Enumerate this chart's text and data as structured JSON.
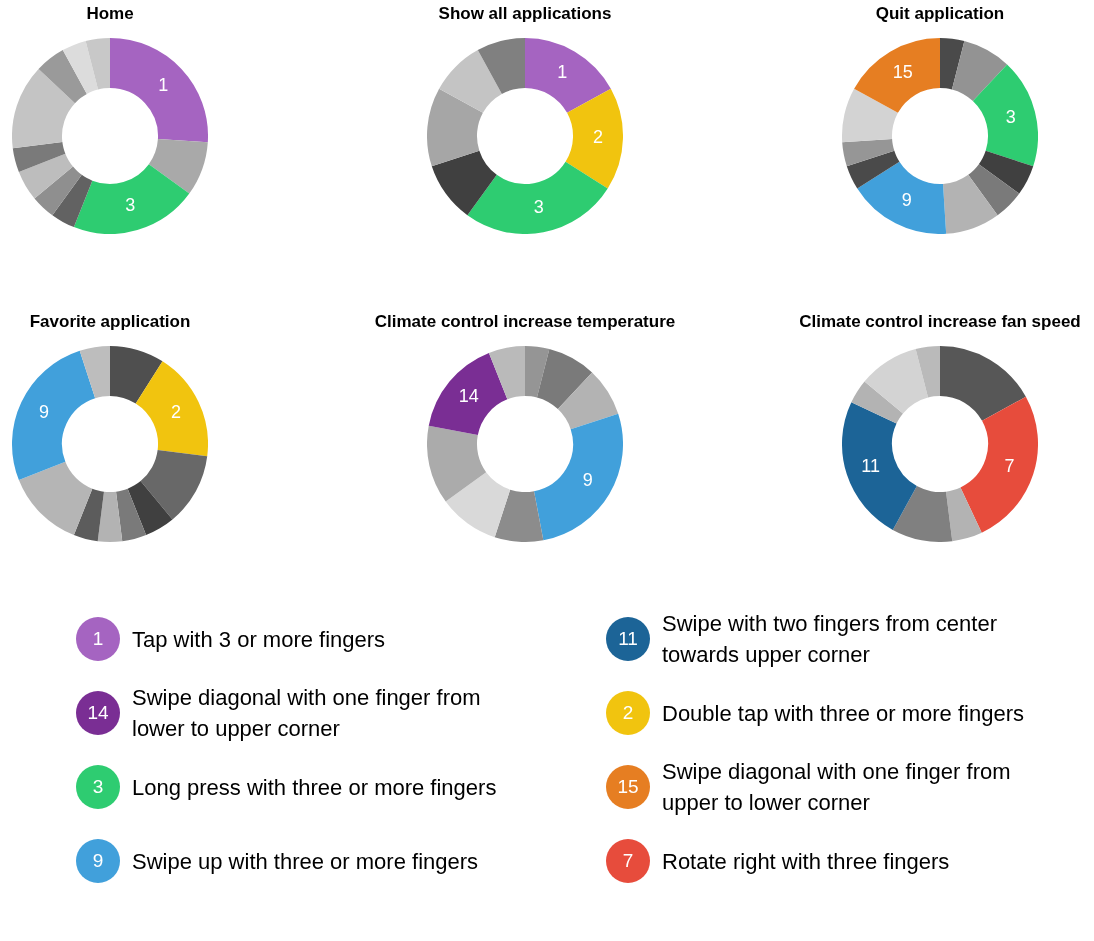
{
  "chart_data": [
    {
      "type": "donut",
      "title": "Home",
      "categories": [
        "1",
        null,
        "3",
        null,
        null,
        null,
        null,
        null,
        null,
        null,
        null
      ],
      "values": [
        26,
        9,
        21,
        4,
        4,
        5,
        4,
        14,
        5,
        4,
        4
      ],
      "colors": [
        "#a564c1",
        "#a9a9a9",
        "#2ecc71",
        "#626262",
        "#8f8f8f",
        "#bdbdbd",
        "#7a7a7a",
        "#c4c4c4",
        "#9a9a9a",
        "#dcdcdc",
        "#c8c8c8"
      ]
    },
    {
      "type": "donut",
      "title": "Show all applications",
      "categories": [
        "1",
        "2",
        "3",
        null,
        null,
        null,
        null
      ],
      "values": [
        17,
        17,
        26,
        10,
        13,
        9,
        8
      ],
      "colors": [
        "#a564c1",
        "#f1c40f",
        "#2ecc71",
        "#404040",
        "#a6a6a6",
        "#c4c4c4",
        "#808080"
      ]
    },
    {
      "type": "donut",
      "title": "Quit application",
      "categories": [
        null,
        null,
        "3",
        null,
        null,
        null,
        "9",
        null,
        null,
        null,
        "15"
      ],
      "values": [
        4,
        8,
        18,
        5,
        5,
        9,
        17,
        4,
        4,
        9,
        17
      ],
      "colors": [
        "#4a4a4a",
        "#939393",
        "#2ecc71",
        "#404040",
        "#7a7a7a",
        "#b3b3b3",
        "#41a0db",
        "#4a4a4a",
        "#969696",
        "#d3d3d3",
        "#e67e22"
      ]
    },
    {
      "type": "donut",
      "title": "Favorite application",
      "categories": [
        null,
        "2",
        null,
        null,
        null,
        null,
        null,
        null,
        "9",
        null
      ],
      "values": [
        9,
        18,
        12,
        5,
        4,
        4,
        4,
        13,
        26,
        5
      ],
      "colors": [
        "#4f4f4f",
        "#f1c40f",
        "#686868",
        "#404040",
        "#7a7a7a",
        "#b3b3b3",
        "#5c5c5c",
        "#b5b5b5",
        "#41a0db",
        "#bdbdbd"
      ]
    },
    {
      "type": "donut",
      "title": "Climate control increase temperature",
      "categories": [
        null,
        null,
        null,
        "9",
        null,
        null,
        null,
        "14",
        null
      ],
      "values": [
        4,
        8,
        8,
        27,
        8,
        10,
        13,
        16,
        6
      ],
      "colors": [
        "#959595",
        "#7a7a7a",
        "#b3b3b3",
        "#41a0db",
        "#8c8c8c",
        "#d9d9d9",
        "#ababab",
        "#7a2e94",
        "#bababa"
      ]
    },
    {
      "type": "donut",
      "title": "Climate control increase fan speed",
      "categories": [
        null,
        "7",
        null,
        null,
        "11",
        null,
        null,
        null
      ],
      "values": [
        17,
        26,
        5,
        10,
        24,
        4,
        10,
        4
      ],
      "colors": [
        "#575757",
        "#e74c3c",
        "#b3b3b3",
        "#808080",
        "#1c6497",
        "#b3b3b3",
        "#d3d3d3",
        "#bababa"
      ]
    },
    {
      "type": "other",
      "categories": [
        "1",
        "11",
        "14",
        "2",
        "3",
        "15",
        "9",
        "7"
      ],
      "colors": [
        "#a564c1",
        "#1c6497",
        "#7a2e94",
        "#f1c40f",
        "#2ecc71",
        "#e67e22",
        "#41a0db",
        "#e74c3c"
      ],
      "annotations": [
        "Tap with 3 or more fingers",
        "Swipe with two fingers from center towards upper corner",
        "Swipe diagonal with one finger from lower to upper corner",
        "Double tap with three or more fingers",
        "Long press with three or more fingers",
        "Swipe diagonal with one finger from upper to lower corner",
        "Swipe up with three or more fingers",
        "Rotate right with three fingers"
      ]
    }
  ]
}
